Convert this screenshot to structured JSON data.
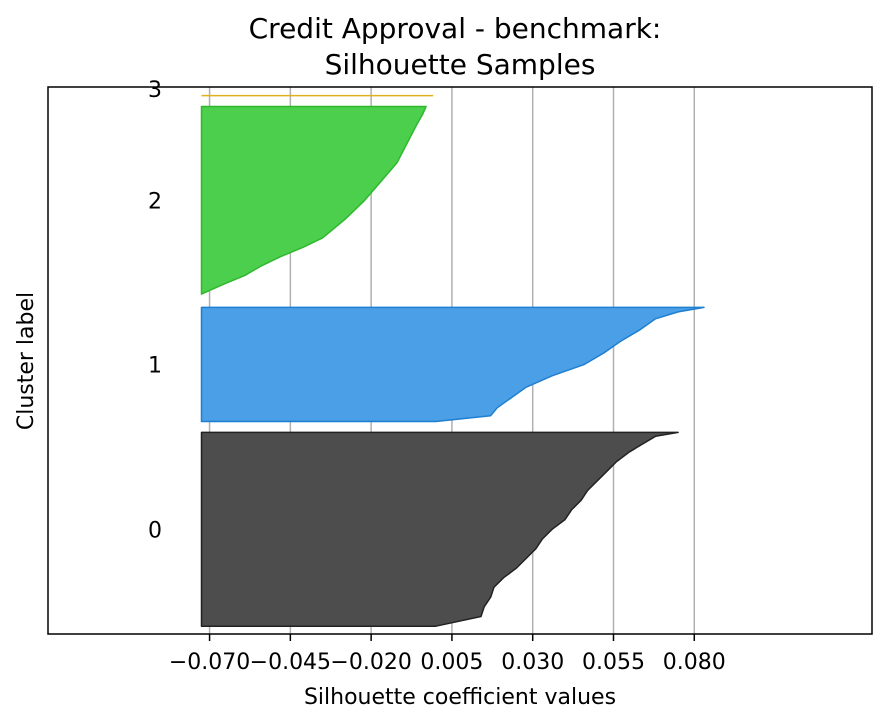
{
  "chart_data": {
    "type": "area",
    "subtype": "silhouette",
    "title_lines": [
      "Credit Approval - benchmark:",
      "Silhouette Samples"
    ],
    "xlabel": "Silhouette coefficient values",
    "ylabel": "Cluster label",
    "xlim": [
      -0.12,
      0.135
    ],
    "xticks": [
      -0.07,
      -0.045,
      -0.02,
      0.005,
      0.03,
      0.055,
      0.08
    ],
    "xtick_labels": [
      "−0.070",
      "−0.045",
      "−0.020",
      "0.005",
      "0.030",
      "0.055",
      "0.080"
    ],
    "grid": {
      "x": true,
      "y": false
    },
    "fill_start": -0.0725,
    "ylim": [
      0,
      70
    ],
    "clusters": [
      {
        "label": "0",
        "color": "#4d4d4d",
        "stroke": "#222222",
        "y_range": [
          1,
          25.8
        ],
        "profile": [
          [
            0.0,
            0.075
          ],
          [
            0.02,
            0.068
          ],
          [
            0.06,
            0.064
          ],
          [
            0.1,
            0.06
          ],
          [
            0.15,
            0.056
          ],
          [
            0.2,
            0.053
          ],
          [
            0.25,
            0.05
          ],
          [
            0.3,
            0.047
          ],
          [
            0.35,
            0.045
          ],
          [
            0.4,
            0.042
          ],
          [
            0.45,
            0.04
          ],
          [
            0.5,
            0.036
          ],
          [
            0.55,
            0.033
          ],
          [
            0.6,
            0.031
          ],
          [
            0.65,
            0.028
          ],
          [
            0.7,
            0.025
          ],
          [
            0.75,
            0.021
          ],
          [
            0.8,
            0.018
          ],
          [
            0.85,
            0.017
          ],
          [
            0.9,
            0.015
          ],
          [
            0.95,
            0.014
          ],
          [
            1.0,
            0.0
          ]
        ]
      },
      {
        "label": "1",
        "color": "#4a9fe6",
        "stroke": "#1f7fd0",
        "y_range": [
          27.2,
          41.8
        ],
        "profile": [
          [
            0.0,
            0.083
          ],
          [
            0.04,
            0.075
          ],
          [
            0.1,
            0.068
          ],
          [
            0.2,
            0.063
          ],
          [
            0.3,
            0.057
          ],
          [
            0.4,
            0.052
          ],
          [
            0.5,
            0.046
          ],
          [
            0.6,
            0.036
          ],
          [
            0.7,
            0.028
          ],
          [
            0.8,
            0.023
          ],
          [
            0.88,
            0.019
          ],
          [
            0.95,
            0.017
          ],
          [
            1.0,
            0.0
          ]
        ]
      },
      {
        "label": "2",
        "color": "#4ccf4c",
        "stroke": "#2fb82f",
        "y_range": [
          43.5,
          67.5
        ],
        "profile": [
          [
            0.0,
            -0.003
          ],
          [
            0.04,
            -0.004
          ],
          [
            0.1,
            -0.006
          ],
          [
            0.2,
            -0.009
          ],
          [
            0.3,
            -0.012
          ],
          [
            0.4,
            -0.017
          ],
          [
            0.5,
            -0.022
          ],
          [
            0.6,
            -0.028
          ],
          [
            0.7,
            -0.035
          ],
          [
            0.75,
            -0.041
          ],
          [
            0.8,
            -0.048
          ],
          [
            0.85,
            -0.054
          ],
          [
            0.9,
            -0.059
          ],
          [
            0.95,
            -0.066
          ],
          [
            1.0,
            -0.0725
          ]
        ]
      },
      {
        "label": "3",
        "color": "#f2c94c",
        "stroke": "#e0b020",
        "y_range": [
          68.6,
          68.9
        ],
        "profile": [
          [
            0.0,
            -0.0
          ]
        ]
      }
    ]
  }
}
